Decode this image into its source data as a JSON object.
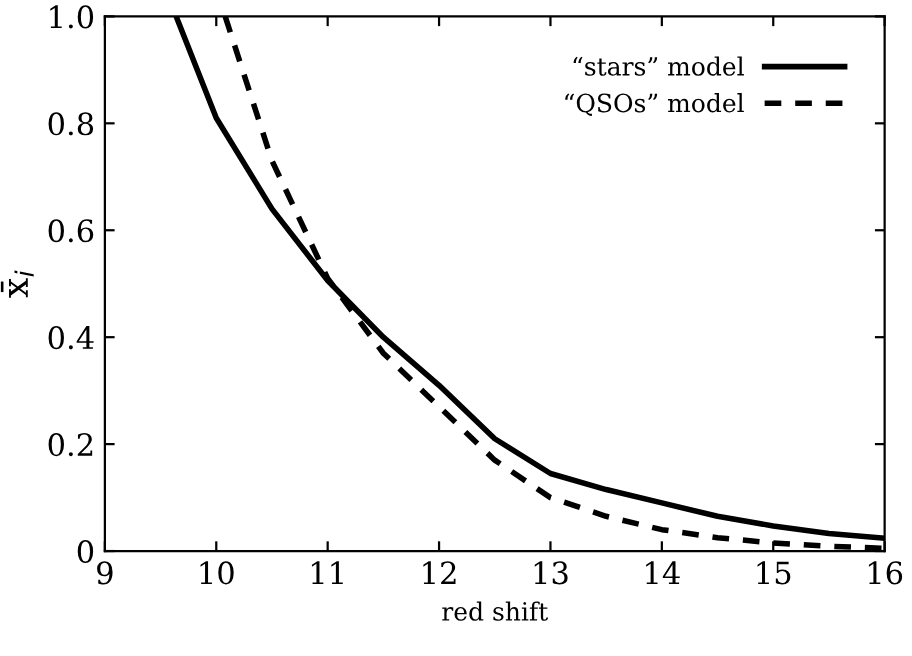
{
  "chart_data": {
    "type": "line",
    "xlabel": "red shift",
    "ylabel": "x̄$_{i}$",
    "xlim": [
      9,
      16
    ],
    "ylim": [
      0,
      1.0
    ],
    "xticks": [
      9,
      10,
      11,
      12,
      13,
      14,
      15,
      16
    ],
    "yticks": [
      0,
      {
        "value": 0.2,
        "label": "0.2"
      },
      {
        "value": 0.4,
        "label": "0.4"
      },
      {
        "value": 0.6,
        "label": "0.6"
      },
      {
        "value": 0.8,
        "label": "0.8"
      },
      {
        "value": 1.0,
        "label": "1.0"
      }
    ],
    "grid": false,
    "legend": "top right",
    "series": [
      {
        "name": "“stars” model",
        "color": "#000000",
        "line_style": "solid",
        "x": [
          9.64,
          10,
          10.5,
          11,
          11.5,
          12,
          12.5,
          13,
          13.5,
          14,
          14.5,
          15,
          15.5,
          16
        ],
        "values": [
          1.0,
          0.81,
          0.64,
          0.506,
          0.4,
          0.31,
          0.21,
          0.145,
          0.115,
          0.09,
          0.065,
          0.047,
          0.033,
          0.024
        ]
      },
      {
        "name": "“QSOs” model",
        "color": "#000000",
        "line_style": "dashed",
        "x": [
          10.08,
          10.5,
          11,
          11.5,
          12,
          12.5,
          13,
          13.5,
          14,
          14.5,
          15,
          15.5,
          16
        ],
        "values": [
          1.0,
          0.73,
          0.51,
          0.37,
          0.27,
          0.17,
          0.1,
          0.065,
          0.04,
          0.025,
          0.015,
          0.009,
          0.005
        ]
      }
    ]
  }
}
